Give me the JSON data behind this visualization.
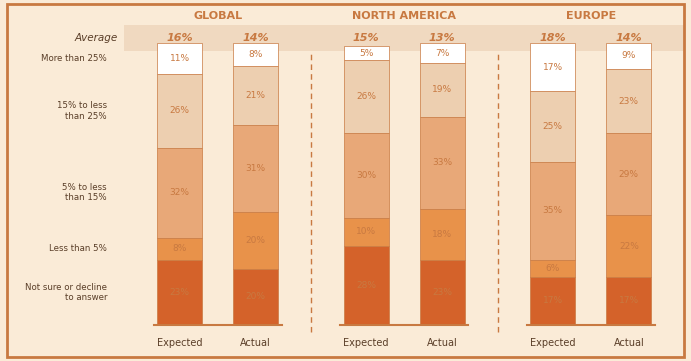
{
  "background_color": "#faebd7",
  "border_color": "#c87941",
  "regions": [
    "GLOBAL",
    "NORTH AMERICA",
    "EUROPE"
  ],
  "averages": {
    "GLOBAL": {
      "Expected": "16%",
      "Actual": "14%"
    },
    "NORTH AMERICA": {
      "Expected": "15%",
      "Actual": "13%"
    },
    "EUROPE": {
      "Expected": "18%",
      "Actual": "14%"
    }
  },
  "categories": [
    "Not sure or decline\nto answer",
    "Less than 5%",
    "5% to less\nthan 15%",
    "15% to less\nthan 25%",
    "More than 25%"
  ],
  "colors": [
    "#d4622a",
    "#e8924a",
    "#e8a878",
    "#edcfb0",
    "#ffffff"
  ],
  "data": {
    "GLOBAL": {
      "Expected": [
        23,
        8,
        32,
        26,
        11
      ],
      "Actual": [
        20,
        20,
        31,
        21,
        8
      ]
    },
    "NORTH AMERICA": {
      "Expected": [
        28,
        10,
        30,
        26,
        5
      ],
      "Actual": [
        23,
        18,
        33,
        19,
        7
      ]
    },
    "EUROPE": {
      "Expected": [
        17,
        6,
        35,
        25,
        17
      ],
      "Actual": [
        17,
        22,
        29,
        23,
        9
      ]
    }
  },
  "title_color": "#c87941",
  "label_color": "#c87941",
  "text_color": "#5a3e28",
  "avg_row_color": "#f0d9c0",
  "avg_label_color": "#c87941"
}
